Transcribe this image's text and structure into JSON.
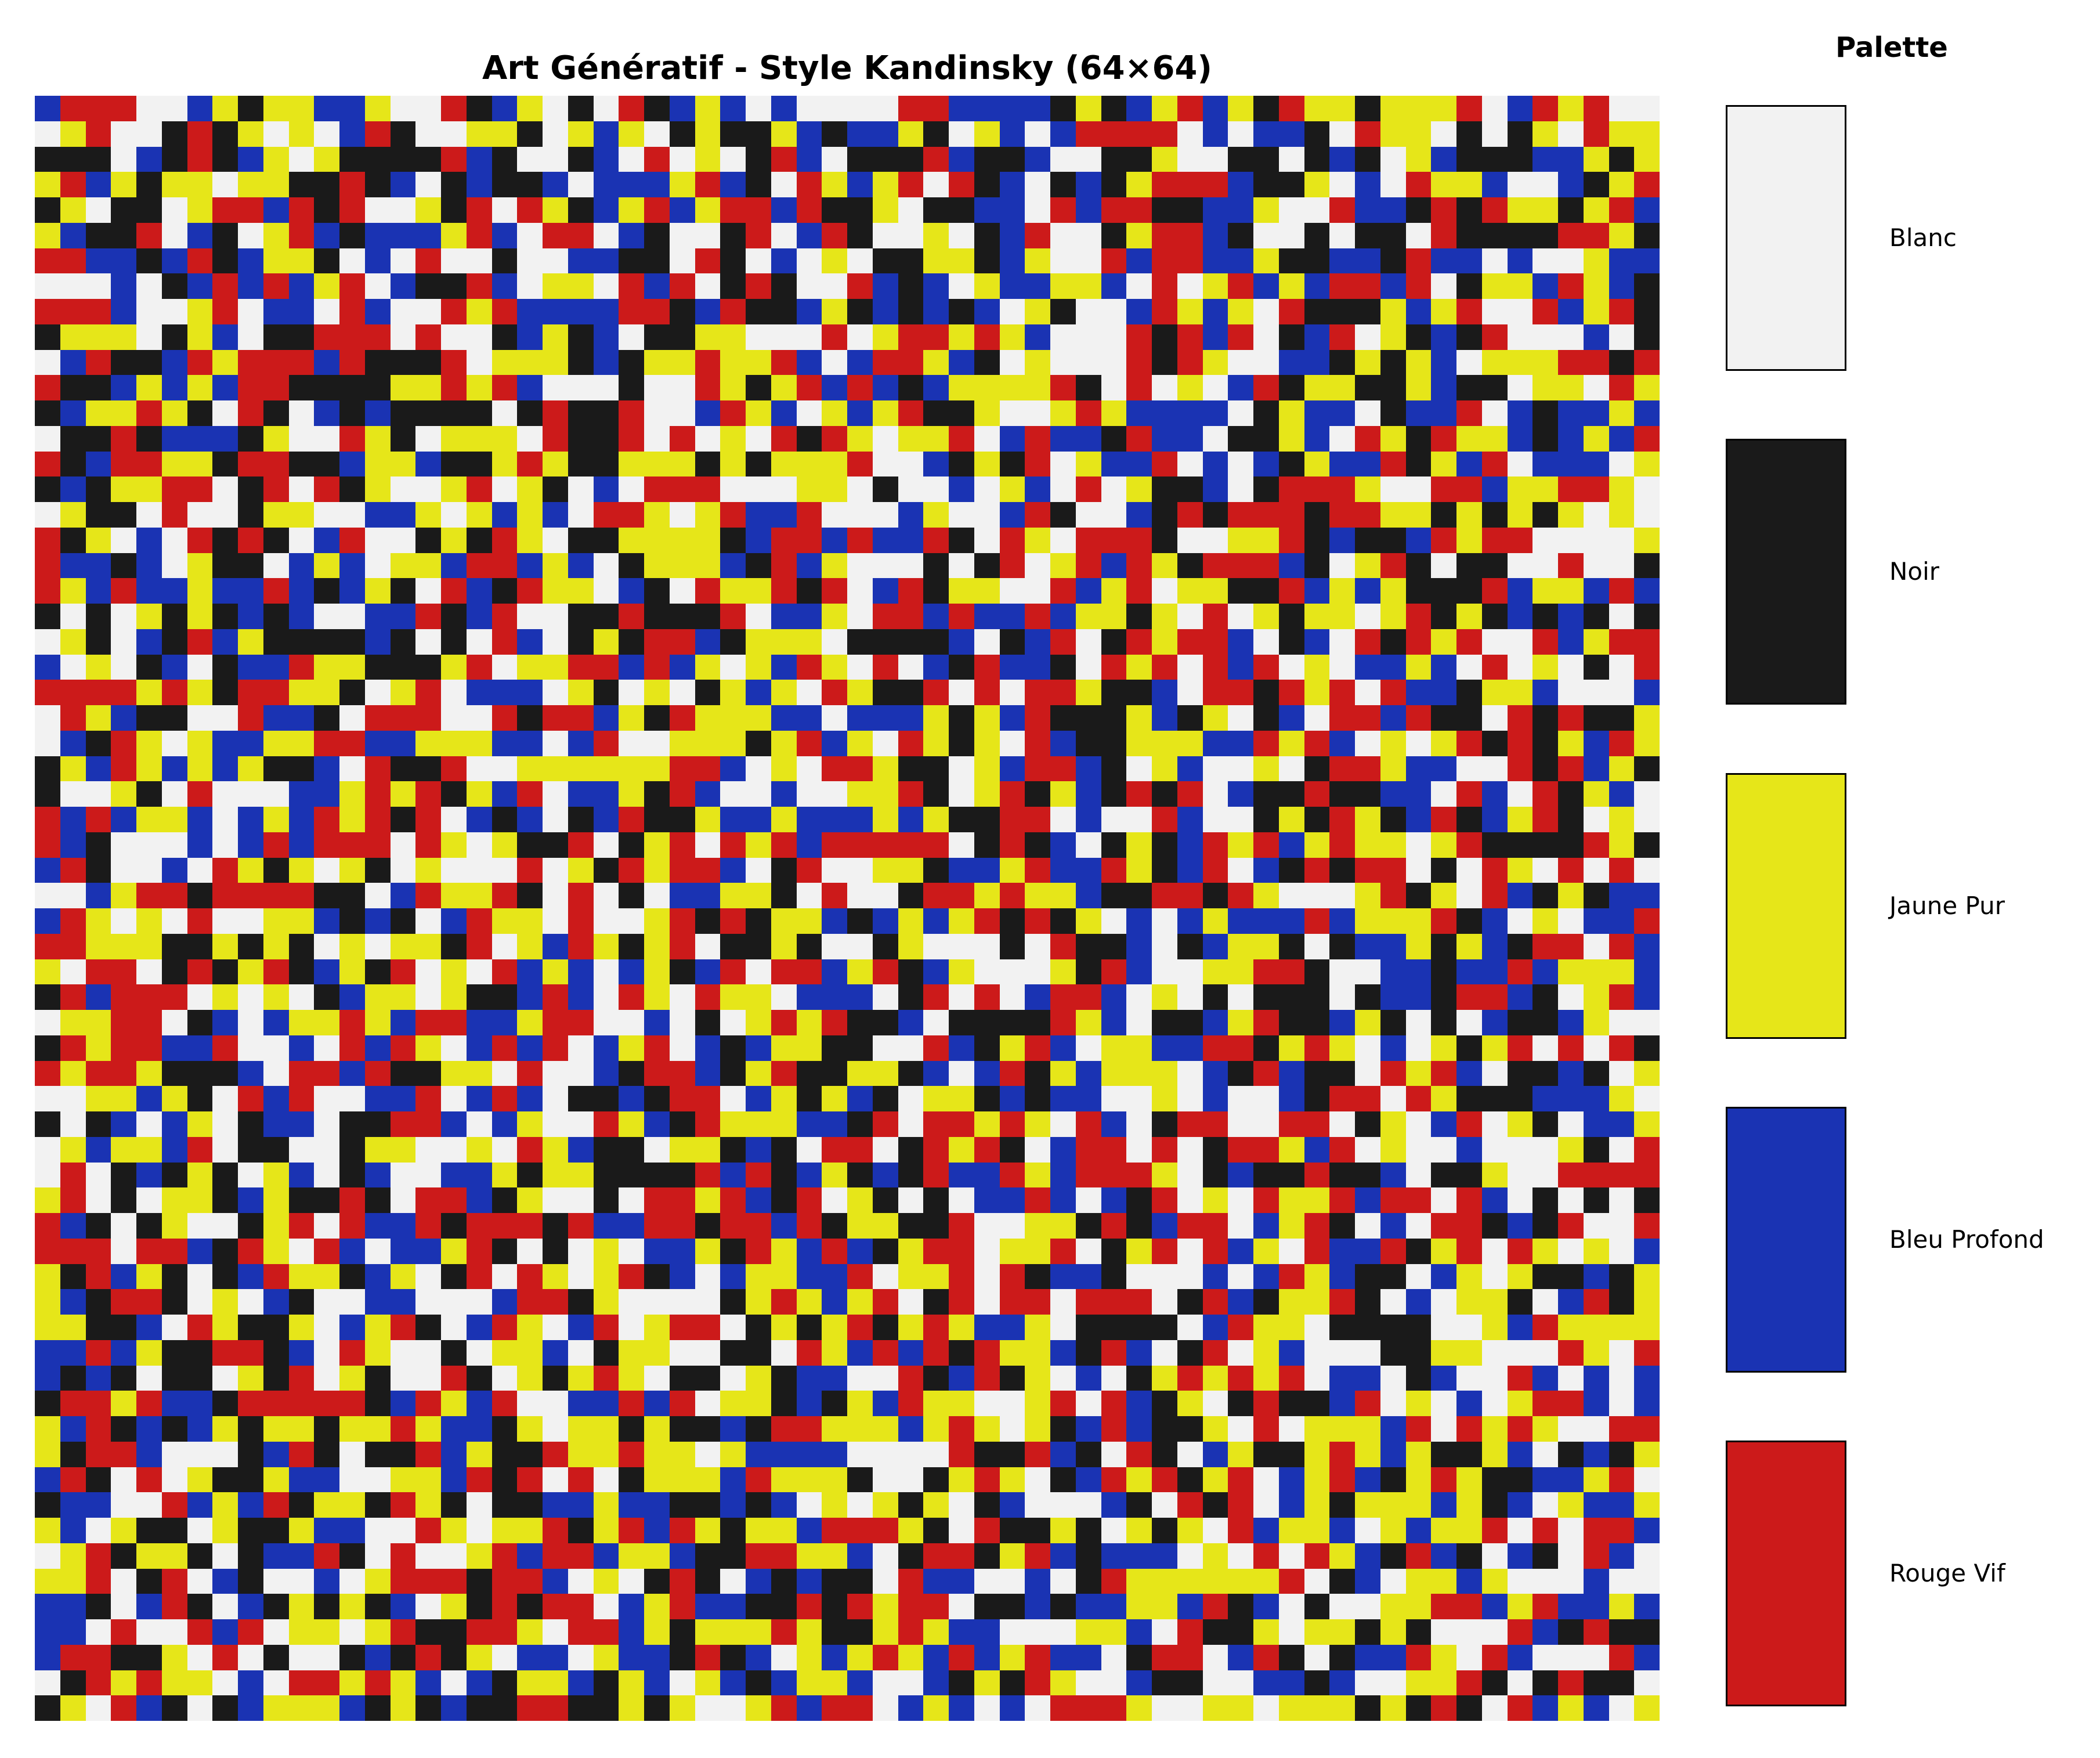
{
  "title": "Art Génératif - Style Kandinsky (64×64)",
  "grid": {
    "rows": 64,
    "cols": 64,
    "colors": [
      "#f2f2f2",
      "#1a1a1a",
      "#e6e619",
      "#1a33b3",
      "#cc1a1a"
    ]
  },
  "palette": {
    "title": "Palette",
    "items": [
      {
        "label": "Blanc",
        "color": "#f2f2f2"
      },
      {
        "label": "Noir",
        "color": "#1a1a1a"
      },
      {
        "label": "Jaune Pur",
        "color": "#e6e619"
      },
      {
        "label": "Bleu Profond",
        "color": "#1a33b3"
      },
      {
        "label": "Rouge Vif",
        "color": "#cc1a1a"
      }
    ]
  }
}
